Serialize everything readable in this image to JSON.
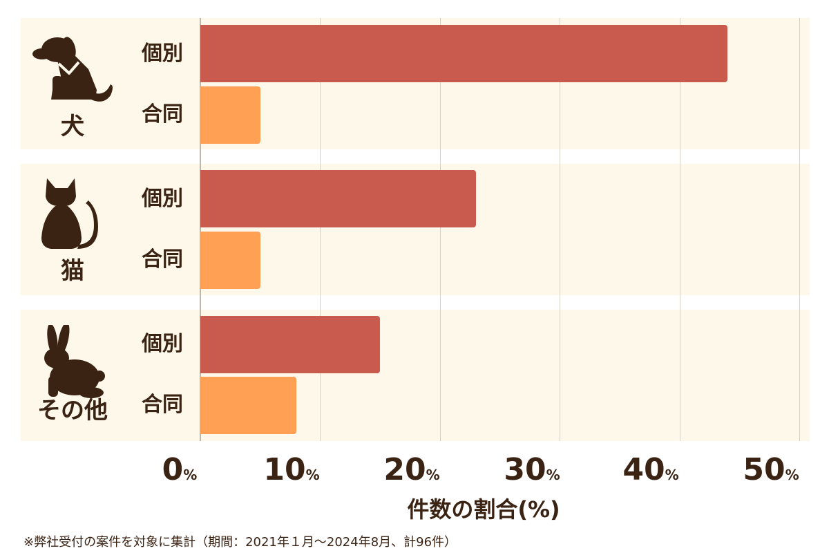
{
  "chart_data": {
    "type": "bar",
    "orientation": "horizontal",
    "groups": [
      {
        "label": "犬",
        "icon": "dog-icon",
        "bars": [
          {
            "label": "個別",
            "value": 44,
            "series": "individual"
          },
          {
            "label": "合同",
            "value": 5,
            "series": "joint"
          }
        ]
      },
      {
        "label": "猫",
        "icon": "cat-icon",
        "bars": [
          {
            "label": "個別",
            "value": 23,
            "series": "individual"
          },
          {
            "label": "合同",
            "value": 5,
            "series": "joint"
          }
        ]
      },
      {
        "label": "その他",
        "icon": "rabbit-icon",
        "bars": [
          {
            "label": "個別",
            "value": 15,
            "series": "individual"
          },
          {
            "label": "合同",
            "value": 8,
            "series": "joint"
          }
        ]
      }
    ],
    "xlabel": "件数の割合(%)",
    "xlim": [
      0,
      50
    ],
    "ticks": [
      {
        "value": "0",
        "unit": "%"
      },
      {
        "value": "10",
        "unit": "%"
      },
      {
        "value": "20",
        "unit": "%"
      },
      {
        "value": "30",
        "unit": "%"
      },
      {
        "value": "40",
        "unit": "%"
      },
      {
        "value": "50",
        "unit": "%"
      }
    ],
    "grid": true,
    "colors": {
      "individual": "#c85a4e",
      "joint": "#ffa055",
      "background": "#fdf8ea",
      "text": "#3b2314"
    }
  },
  "footnote": "※弊社受付の案件を対象に集計（期間：2021年１月～2024年8月、計96件）"
}
